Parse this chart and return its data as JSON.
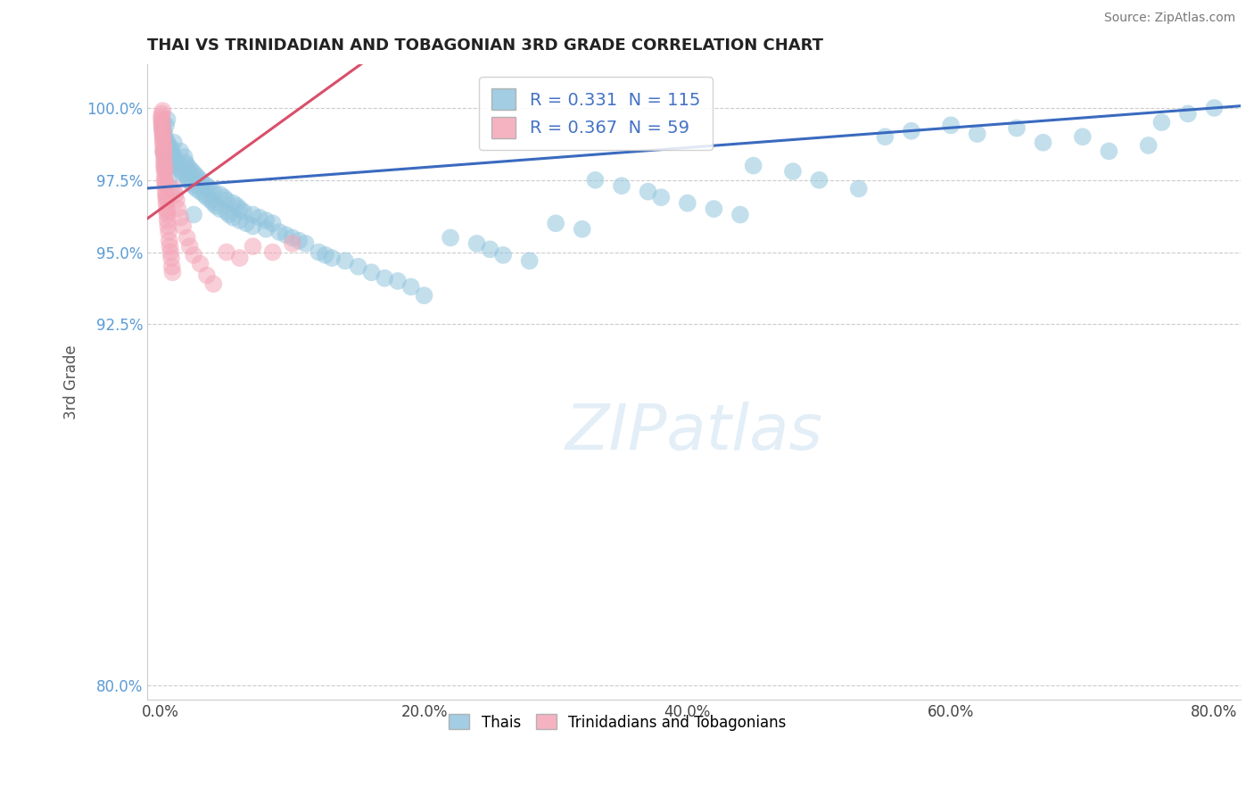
{
  "title": "THAI VS TRINIDADIAN AND TOBAGONIAN 3RD GRADE CORRELATION CHART",
  "source": "Source: ZipAtlas.com",
  "xlabel_vals": [
    0.0,
    20.0,
    40.0,
    60.0,
    80.0
  ],
  "ylabel_vals": [
    80.0,
    92.5,
    95.0,
    97.5,
    100.0
  ],
  "xlim": [
    -1.0,
    82.0
  ],
  "ylim": [
    79.5,
    101.5
  ],
  "R_blue": 0.331,
  "N_blue": 115,
  "R_pink": 0.367,
  "N_pink": 59,
  "blue_color": "#92c5de",
  "pink_color": "#f4a6b8",
  "blue_line_color": "#3a6abf",
  "pink_line_color": "#d94f6a",
  "ylabel": "3rd Grade",
  "legend_thais": "Thais",
  "legend_tt": "Trinidadians and Tobagonians",
  "blue_scatter_x": [
    0.1,
    0.15,
    0.2,
    0.25,
    0.3,
    0.35,
    0.4,
    0.5,
    0.5,
    0.6,
    0.7,
    0.8,
    0.9,
    1.0,
    1.0,
    1.1,
    1.2,
    1.3,
    1.4,
    1.5,
    1.6,
    1.7,
    1.8,
    1.9,
    2.0,
    2.0,
    2.1,
    2.2,
    2.3,
    2.4,
    2.5,
    2.6,
    2.7,
    2.8,
    3.0,
    3.0,
    3.2,
    3.3,
    3.5,
    3.5,
    3.7,
    3.8,
    4.0,
    4.0,
    4.2,
    4.5,
    4.5,
    4.8,
    5.0,
    5.0,
    5.2,
    5.5,
    5.5,
    5.8,
    6.0,
    6.0,
    6.3,
    6.5,
    7.0,
    7.0,
    7.5,
    8.0,
    8.0,
    8.5,
    9.0,
    9.5,
    10.0,
    10.5,
    11.0,
    12.0,
    12.5,
    13.0,
    14.0,
    15.0,
    16.0,
    17.0,
    18.0,
    19.0,
    20.0,
    22.0,
    24.0,
    25.0,
    26.0,
    28.0,
    30.0,
    32.0,
    33.0,
    35.0,
    37.0,
    38.0,
    40.0,
    42.0,
    44.0,
    45.0,
    48.0,
    50.0,
    53.0,
    55.0,
    57.0,
    60.0,
    62.0,
    65.0,
    67.0,
    70.0,
    72.0,
    75.0,
    76.0,
    78.0,
    80.0,
    0.2,
    0.3,
    0.4,
    0.6,
    0.8,
    2.5
  ],
  "blue_scatter_y": [
    99.3,
    99.5,
    99.2,
    99.0,
    99.1,
    98.9,
    99.4,
    98.8,
    99.6,
    98.7,
    98.5,
    98.6,
    98.4,
    98.8,
    98.3,
    98.2,
    98.1,
    98.0,
    97.9,
    98.5,
    97.8,
    97.7,
    98.3,
    98.1,
    97.6,
    98.0,
    97.5,
    97.9,
    97.4,
    97.8,
    97.3,
    97.7,
    97.2,
    97.6,
    97.5,
    97.1,
    97.4,
    97.0,
    97.3,
    96.9,
    97.2,
    96.8,
    97.1,
    96.7,
    96.6,
    97.0,
    96.5,
    96.9,
    96.4,
    96.8,
    96.3,
    96.7,
    96.2,
    96.6,
    96.5,
    96.1,
    96.4,
    96.0,
    96.3,
    95.9,
    96.2,
    96.1,
    95.8,
    96.0,
    95.7,
    95.6,
    95.5,
    95.4,
    95.3,
    95.0,
    94.9,
    94.8,
    94.7,
    94.5,
    94.3,
    94.1,
    94.0,
    93.8,
    93.5,
    95.5,
    95.3,
    95.1,
    94.9,
    94.7,
    96.0,
    95.8,
    97.5,
    97.3,
    97.1,
    96.9,
    96.7,
    96.5,
    96.3,
    98.0,
    97.8,
    97.5,
    97.2,
    99.0,
    99.2,
    99.4,
    99.1,
    99.3,
    98.8,
    99.0,
    98.5,
    98.7,
    99.5,
    99.8,
    100.0,
    98.5,
    98.2,
    97.9,
    97.5,
    97.2,
    96.3
  ],
  "pink_scatter_x": [
    0.05,
    0.07,
    0.08,
    0.1,
    0.1,
    0.12,
    0.13,
    0.15,
    0.15,
    0.17,
    0.18,
    0.2,
    0.2,
    0.22,
    0.23,
    0.25,
    0.25,
    0.27,
    0.28,
    0.3,
    0.3,
    0.32,
    0.35,
    0.35,
    0.38,
    0.4,
    0.4,
    0.42,
    0.45,
    0.45,
    0.48,
    0.5,
    0.5,
    0.55,
    0.6,
    0.65,
    0.7,
    0.75,
    0.8,
    0.85,
    0.9,
    1.0,
    1.1,
    1.2,
    1.3,
    1.5,
    1.7,
    2.0,
    2.2,
    2.5,
    3.0,
    3.5,
    4.0,
    5.0,
    6.0,
    7.0,
    8.5,
    10.0,
    0.15
  ],
  "pink_scatter_y": [
    99.7,
    99.5,
    99.6,
    99.4,
    99.8,
    99.2,
    99.3,
    99.1,
    99.0,
    98.9,
    98.8,
    98.7,
    98.5,
    98.6,
    98.4,
    98.3,
    98.1,
    97.9,
    98.0,
    97.8,
    97.5,
    97.6,
    97.3,
    97.4,
    97.1,
    96.9,
    97.0,
    96.7,
    96.5,
    96.8,
    96.3,
    96.1,
    96.4,
    95.9,
    95.7,
    95.4,
    95.2,
    95.0,
    94.8,
    94.5,
    94.3,
    97.2,
    97.0,
    96.8,
    96.5,
    96.2,
    95.9,
    95.5,
    95.2,
    94.9,
    94.6,
    94.2,
    93.9,
    95.0,
    94.8,
    95.2,
    95.0,
    95.3,
    99.9
  ]
}
